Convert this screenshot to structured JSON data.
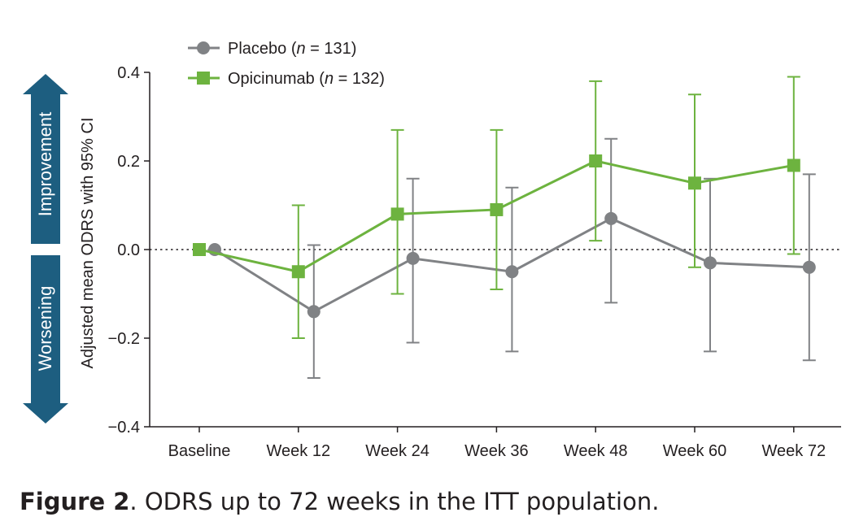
{
  "chart_data": {
    "type": "line",
    "categories": [
      "Baseline",
      "Week 12",
      "Week 24",
      "Week 36",
      "Week 48",
      "Week 60",
      "Week 72"
    ],
    "ylabel": "Adjusted mean ODRS with 95% CI",
    "ylim": [
      -0.4,
      0.4
    ],
    "yticks": [
      "0.4",
      "0.2",
      "0.0",
      "−0.2",
      "−0.4"
    ],
    "reference_line": 0.0,
    "legend_position": "top-left",
    "series": [
      {
        "name_prefix": "Placebo (",
        "name_italic": "n",
        "name_suffix": " = 131)",
        "marker": "circle",
        "color": "#808285",
        "values": [
          0.0,
          -0.14,
          -0.02,
          -0.05,
          0.07,
          -0.03,
          -0.04
        ],
        "ci_low": [
          null,
          -0.29,
          -0.21,
          -0.23,
          -0.12,
          -0.23,
          -0.25
        ],
        "ci_high": [
          null,
          0.01,
          0.16,
          0.14,
          0.25,
          0.16,
          0.17
        ]
      },
      {
        "name_prefix": "Opicinumab (",
        "name_italic": "n",
        "name_suffix": " = 132)",
        "marker": "square",
        "color": "#6db33f",
        "values": [
          0.0,
          -0.05,
          0.08,
          0.09,
          0.2,
          0.15,
          0.19
        ],
        "ci_low": [
          null,
          -0.2,
          -0.1,
          -0.09,
          0.02,
          -0.04,
          -0.01
        ],
        "ci_high": [
          null,
          0.1,
          0.27,
          0.27,
          0.38,
          0.35,
          0.39
        ]
      }
    ],
    "arrows": {
      "up_label": "Improvement",
      "down_label": "Worsening",
      "color": "#1d5e80"
    }
  },
  "caption": {
    "bold": "Figure 2",
    "text": ". ODRS up to 72 weeks in the ITT population."
  }
}
